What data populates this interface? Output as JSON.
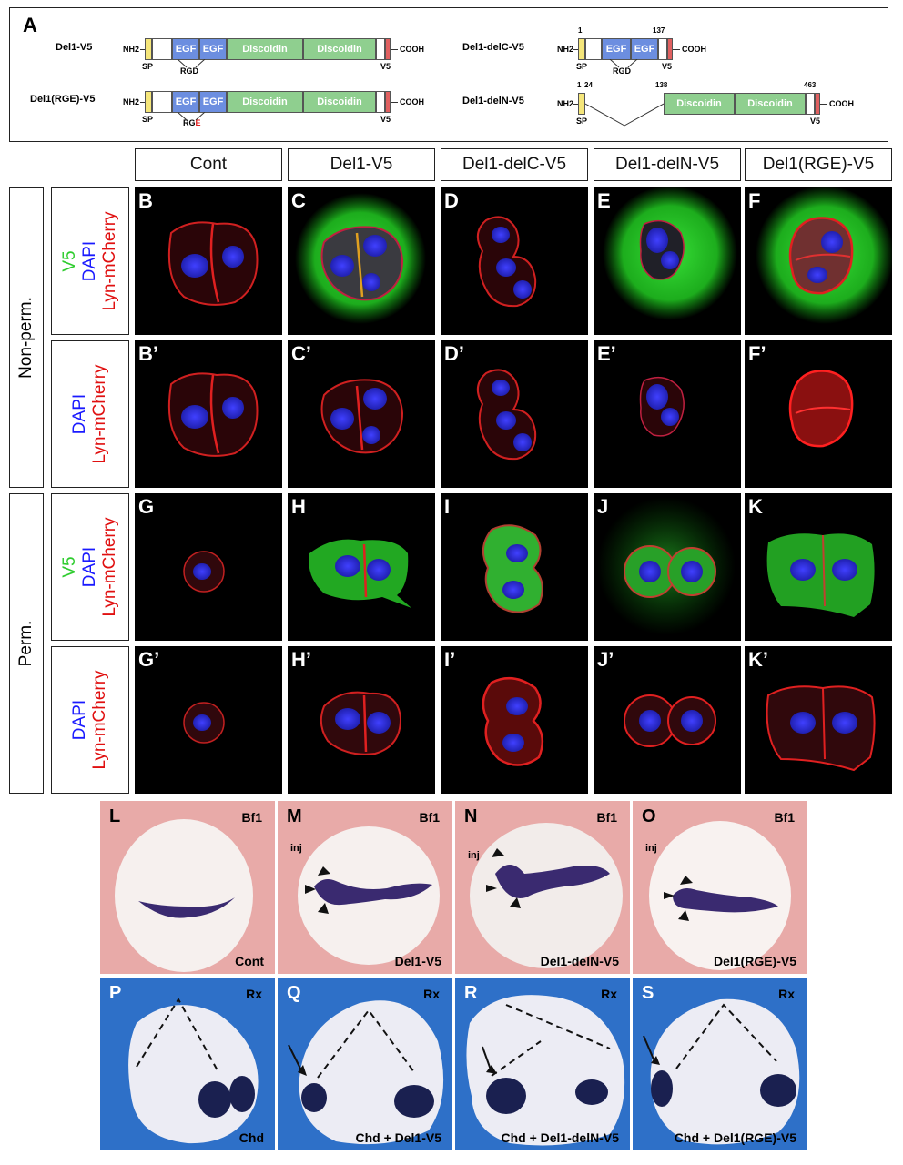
{
  "panel_a": {
    "letter": "A",
    "constructs": [
      {
        "name": "Del1-V5",
        "nh2": "NH2",
        "segments": [
          "EGF",
          "EGF",
          "Discoidin",
          "Discoidin"
        ],
        "sp": "SP",
        "motif": "RGD",
        "v5": "V5",
        "cooh": "COOH"
      },
      {
        "name": "Del1(RGE)-V5",
        "nh2": "NH2",
        "segments": [
          "EGF",
          "EGF",
          "Discoidin",
          "Discoidin"
        ],
        "sp": "SP",
        "motif_prefix": "RG",
        "motif_mut": "E",
        "v5": "V5",
        "cooh": "COOH",
        "mut_color": "#e02020"
      },
      {
        "name": "Del1-delC-V5",
        "nh2": "NH2",
        "segments": [
          "EGF",
          "EGF"
        ],
        "sp": "SP",
        "motif": "RGD",
        "v5": "V5",
        "cooh": "COOH",
        "pos_start": "1",
        "pos_end": "137"
      },
      {
        "name": "Del1-delN-V5",
        "nh2": "NH2",
        "segments": [
          "Discoidin",
          "Discoidin"
        ],
        "sp": "SP",
        "v5": "V5",
        "cooh": "COOH",
        "pos_1": "1",
        "pos_24": "24",
        "pos_138": "138",
        "pos_463": "463"
      }
    ],
    "colors": {
      "egf": "#6c8ee0",
      "discoidin": "#8fcf8f",
      "sp": "#f5e67a",
      "v5": "#e06060"
    }
  },
  "columns": [
    "Cont",
    "Del1-V5",
    "Del1-delC-V5",
    "Del1-delN-V5",
    "Del1(RGE)-V5"
  ],
  "rows": {
    "nonperm_label": "Non-perm.",
    "perm_label": "Perm.",
    "stain_v5": "V5",
    "stain_dapi": "DAPI",
    "stain_lyn": "Lyn-mCherry",
    "stain_colors": {
      "v5": "#2ecc2e",
      "dapi": "#1a1aff",
      "lyn": "#e01010"
    }
  },
  "panel_letters": {
    "row1": [
      "B",
      "C",
      "D",
      "E",
      "F"
    ],
    "row2": [
      "B’",
      "C’",
      "D’",
      "E’",
      "F’"
    ],
    "row3": [
      "G",
      "H",
      "I",
      "J",
      "K"
    ],
    "row4": [
      "G’",
      "H’",
      "I’",
      "J’",
      "K’"
    ]
  },
  "embryos_bf1": [
    {
      "letter": "L",
      "marker": "Bf1",
      "condition": "Cont",
      "inj": ""
    },
    {
      "letter": "M",
      "marker": "Bf1",
      "condition": "Del1-V5",
      "inj": "inj"
    },
    {
      "letter": "N",
      "marker": "Bf1",
      "condition": "Del1-delN-V5",
      "inj": "inj"
    },
    {
      "letter": "O",
      "marker": "Bf1",
      "condition": "Del1(RGE)-V5",
      "inj": "inj"
    }
  ],
  "embryos_rx": [
    {
      "letter": "P",
      "marker": "Rx",
      "condition": "Chd"
    },
    {
      "letter": "Q",
      "marker": "Rx",
      "condition": "Chd + Del1-V5"
    },
    {
      "letter": "R",
      "marker": "Rx",
      "condition": "Chd + Del1-delN-V5"
    },
    {
      "letter": "S",
      "marker": "Rx",
      "condition": "Chd + Del1(RGE)-V5"
    }
  ]
}
